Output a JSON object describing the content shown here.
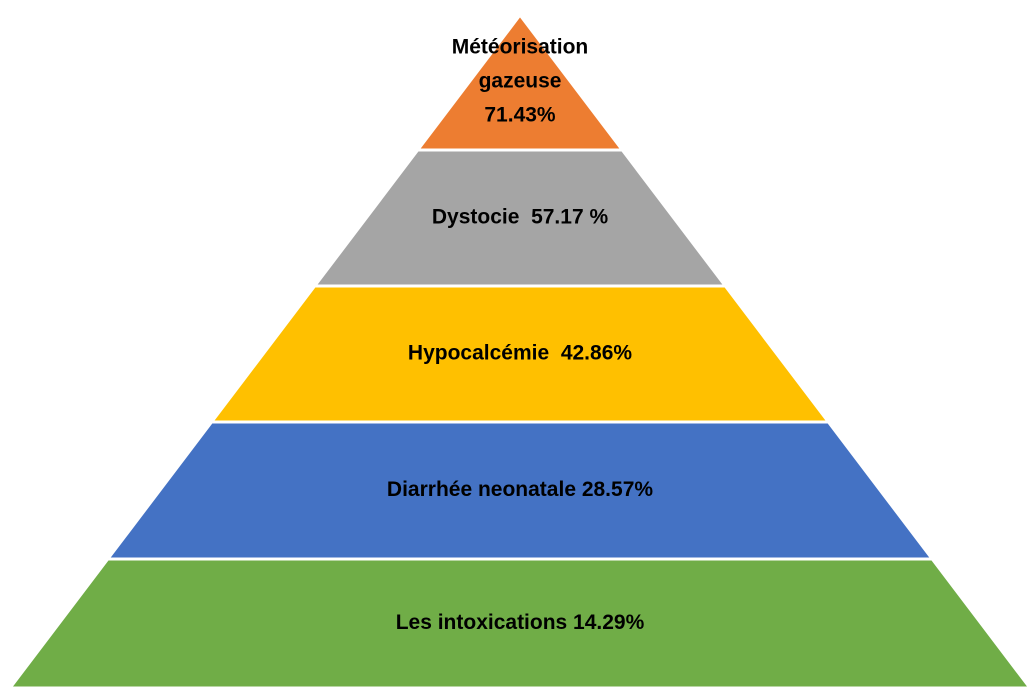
{
  "layers": [
    {
      "lines": [
        "Météorisation",
        "gazeuse",
        "71.43%"
      ],
      "color": "#ED7D31"
    },
    {
      "lines": [
        "Dystocie  57.17 %"
      ],
      "color": "#A5A5A5"
    },
    {
      "lines": [
        "Hypocalcémie  42.86%"
      ],
      "color": "#FFC000"
    },
    {
      "lines": [
        "Diarrhée neonatale 28.57%"
      ],
      "color": "#4472C4"
    },
    {
      "lines": [
        "Les intoxications 14.29%"
      ],
      "color": "#70AD47"
    }
  ]
}
